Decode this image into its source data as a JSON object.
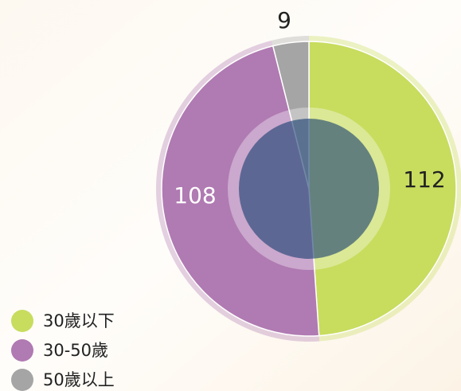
{
  "chart_data": {
    "type": "pie",
    "categories": [
      "30歲以下",
      "30-50歲",
      "50歲以上"
    ],
    "values": [
      112,
      108,
      9
    ],
    "colors": [
      "#c8dc5e",
      "#b07ab2",
      "#a5a5a5"
    ],
    "legend": "bottom-left"
  }
}
